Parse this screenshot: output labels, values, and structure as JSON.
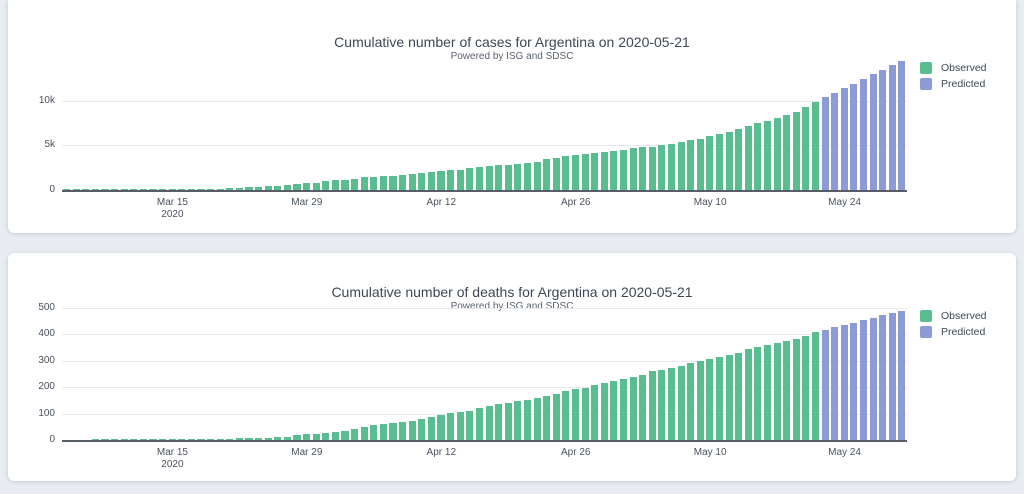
{
  "page": {
    "background": "#e9edf2",
    "card_background": "#ffffff"
  },
  "colors": {
    "observed": "#5abd8f",
    "predicted": "#8c9bd6",
    "axis_line": "#585d66",
    "gridline": "#e7e9ec",
    "tick_text": "#49525f",
    "title_text": "#3e4753"
  },
  "chart_data": [
    {
      "type": "bar",
      "title": "Cumulative number of cases for Argentina on 2020-05-21",
      "subtitle": "Powered by ISG and SDSC",
      "xlabel": "",
      "ylabel": "",
      "grid": true,
      "legend_position": "right-top",
      "ylim": [
        0,
        14600
      ],
      "yticks": [
        {
          "label": "0",
          "value": 0
        },
        {
          "label": "5k",
          "value": 5000
        },
        {
          "label": "10k",
          "value": 10000
        }
      ],
      "x_start_date": "2020-03-04",
      "x_ticks": [
        {
          "label": "Mar 15",
          "sublabel": "2020",
          "day": 11
        },
        {
          "label": "Mar 29",
          "day": 25
        },
        {
          "label": "Apr 12",
          "day": 39
        },
        {
          "label": "Apr 26",
          "day": 53
        },
        {
          "label": "May 10",
          "day": 67
        },
        {
          "label": "May 24",
          "day": 81
        }
      ],
      "series": [
        {
          "name": "Observed",
          "color": "#5abd8f",
          "start_date": "2020-03-04",
          "end_date": "2020-05-21",
          "values": [
            1,
            2,
            8,
            9,
            12,
            17,
            19,
            21,
            31,
            34,
            45,
            56,
            65,
            79,
            97,
            128,
            158,
            225,
            266,
            301,
            387,
            443,
            502,
            589,
            690,
            745,
            820,
            1054,
            1116,
            1133,
            1265,
            1451,
            1451,
            1554,
            1628,
            1715,
            1795,
            1894,
            1975,
            2142,
            2208,
            2277,
            2443,
            2571,
            2669,
            2758,
            2839,
            2941,
            3031,
            3144,
            3435,
            3607,
            3780,
            3892,
            4003,
            4127,
            4285,
            4428,
            4532,
            4681,
            4783,
            4887,
            5020,
            5208,
            5371,
            5611,
            5776,
            6034,
            6278,
            6563,
            6879,
            7134,
            7479,
            7805,
            8068,
            8371,
            8809,
            9283,
            9931
          ]
        },
        {
          "name": "Predicted",
          "color": "#8c9bd6",
          "start_date": "2020-05-22",
          "end_date": "2020-05-30",
          "values": [
            10420,
            10920,
            11430,
            11950,
            12480,
            13010,
            13520,
            14010,
            14480
          ]
        }
      ]
    },
    {
      "type": "bar",
      "title": "Cumulative number of deaths for Argentina on 2020-05-21",
      "subtitle": "Powered by ISG and SDSC",
      "xlabel": "",
      "ylabel": "",
      "grid": true,
      "legend_position": "right-top",
      "ylim": [
        0,
        500
      ],
      "yticks": [
        {
          "label": "0",
          "value": 0
        },
        {
          "label": "100",
          "value": 100
        },
        {
          "label": "200",
          "value": 200
        },
        {
          "label": "300",
          "value": 300
        },
        {
          "label": "400",
          "value": 400
        },
        {
          "label": "500",
          "value": 500
        }
      ],
      "x_start_date": "2020-03-04",
      "x_ticks": [
        {
          "label": "Mar 15",
          "sublabel": "2020",
          "day": 11
        },
        {
          "label": "Mar 29",
          "day": 25
        },
        {
          "label": "Apr 12",
          "day": 39
        },
        {
          "label": "Apr 26",
          "day": 53
        },
        {
          "label": "May 10",
          "day": 67
        },
        {
          "label": "May 24",
          "day": 81
        }
      ],
      "series": [
        {
          "name": "Observed",
          "color": "#5abd8f",
          "start_date": "2020-03-04",
          "end_date": "2020-05-21",
          "values": [
            0,
            0,
            0,
            1,
            1,
            1,
            1,
            1,
            1,
            2,
            2,
            2,
            2,
            2,
            3,
            3,
            4,
            4,
            6,
            6,
            8,
            9,
            12,
            13,
            18,
            21,
            24,
            28,
            31,
            36,
            43,
            48,
            56,
            60,
            63,
            68,
            72,
            79,
            86,
            95,
            101,
            105,
            111,
            122,
            129,
            136,
            142,
            147,
            152,
            159,
            165,
            176,
            185,
            192,
            197,
            207,
            215,
            225,
            231,
            237,
            246,
            260,
            264,
            273,
            282,
            293,
            300,
            305,
            314,
            323,
            331,
            344,
            353,
            361,
            368,
            375,
            383,
            395,
            410
          ]
        },
        {
          "name": "Predicted",
          "color": "#8c9bd6",
          "start_date": "2020-05-22",
          "end_date": "2020-05-30",
          "values": [
            418,
            427,
            436,
            445,
            454,
            463,
            472,
            481,
            490
          ]
        }
      ]
    }
  ]
}
